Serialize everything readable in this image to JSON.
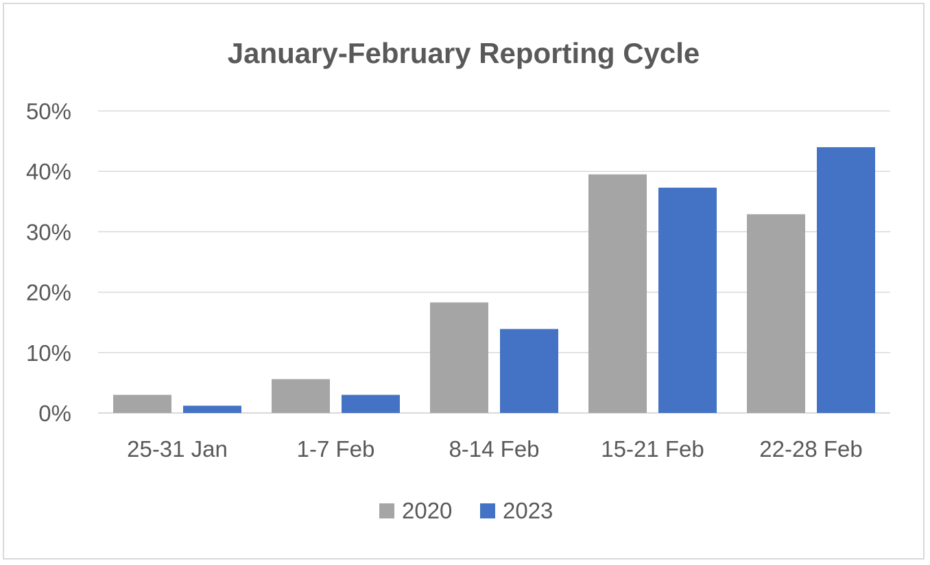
{
  "chart_data": {
    "type": "bar",
    "title": "January-February Reporting Cycle",
    "xlabel": "",
    "ylabel": "",
    "categories": [
      "25-31 Jan",
      "1-7 Feb",
      "8-14 Feb",
      "15-21 Feb",
      "22-28 Feb"
    ],
    "series": [
      {
        "name": "2020",
        "color": "#a5a5a5",
        "values": [
          3.0,
          5.6,
          18.3,
          39.5,
          32.9
        ]
      },
      {
        "name": "2023",
        "color": "#4472c4",
        "values": [
          1.2,
          3.0,
          13.9,
          37.3,
          44.0
        ]
      }
    ],
    "ylim": [
      0,
      50
    ],
    "yticks": [
      "0%",
      "10%",
      "20%",
      "30%",
      "40%",
      "50%"
    ],
    "grid": true,
    "legend": "bottom"
  }
}
